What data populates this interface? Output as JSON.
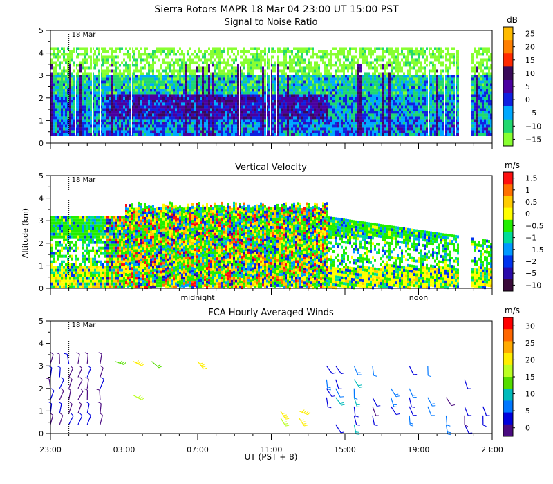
{
  "header": {
    "title": "Sierra Rotors   MAPR 18 Mar 04   23:00 UT   15:00   PST"
  },
  "x_axis": {
    "label": "UT  (PST + 8)",
    "range_hours": [
      0,
      24
    ],
    "tick_hours": [
      0,
      4,
      8,
      12,
      16,
      20,
      24
    ],
    "tick_labels": [
      "23:00",
      "03:00",
      "07:00",
      "11:00",
      "15:00",
      "19:00",
      "23:00"
    ],
    "minor_step_hours": 1,
    "day_marker_hour": 1,
    "day_marker_label": "18 Mar",
    "local_time_labels": [
      {
        "hour": 8,
        "text": "midnight"
      },
      {
        "hour": 20,
        "text": "noon"
      }
    ]
  },
  "y_axis": {
    "label": "Altitude (km)",
    "range": [
      0,
      5
    ],
    "ticks": [
      0,
      1,
      2,
      3,
      4,
      5
    ]
  },
  "chart_data": [
    {
      "type": "heatmap",
      "title": "Signal to Noise Ratio",
      "colorbar_unit": "dB",
      "colorbar_labels": [
        "25",
        "20",
        "15",
        "10",
        "5",
        "0",
        "−5",
        "−10",
        "−15"
      ],
      "colorbar_colors": [
        "#ffbb00",
        "#ff7f00",
        "#ff2a00",
        "#3a0a5a",
        "#4a00a0",
        "#1020e0",
        "#00a8ff",
        "#20d870",
        "#88ff30"
      ],
      "x_range": [
        0,
        24
      ],
      "y_range": [
        0,
        5
      ],
      "data_gaps_hours": [
        [
          22.15,
          22.8
        ],
        [
          23.95,
          24
        ]
      ],
      "profile_km": [
        {
          "alt_range": [
            0.4,
            1.1
          ],
          "dB": -2
        },
        {
          "alt_range": [
            1.1,
            2.2
          ],
          "dB": 8
        },
        {
          "alt_range": [
            2.2,
            3.1
          ],
          "dB": -5
        },
        {
          "alt_range": [
            3.1,
            4.25
          ],
          "dB": -15
        }
      ]
    },
    {
      "type": "heatmap",
      "title": "Vertical Velocity",
      "colorbar_unit": "m/s",
      "colorbar_labels": [
        "1.5",
        "1",
        "0.5",
        "0",
        "−0.5",
        "−1",
        "−1.5",
        "−2",
        "−5",
        "−10"
      ],
      "colorbar_colors": [
        "#ff1010",
        "#ff7000",
        "#ffcc00",
        "#ffff00",
        "#22ee00",
        "#00dd99",
        "#0099ff",
        "#0033ee",
        "#2a0aaa",
        "#3a0a3a"
      ],
      "x_range": [
        0,
        24
      ],
      "y_range": [
        0,
        5
      ],
      "data_gaps_hours": [
        [
          22.15,
          22.8
        ],
        [
          23.95,
          24
        ]
      ],
      "velocity_profile_ms": [
        {
          "alt_range": [
            0.1,
            1.0
          ],
          "mean": 0.2
        },
        {
          "alt_range": [
            1.0,
            2.5
          ],
          "mean": -0.3
        },
        {
          "alt_range": [
            2.5,
            3.6
          ],
          "mean": -0.6
        }
      ]
    },
    {
      "type": "scatter",
      "title": "FCA Hourly Averaged Winds",
      "colorbar_unit": "m/s",
      "colorbar_labels": [
        "30",
        "25",
        "20",
        "15",
        "10",
        "5",
        "0"
      ],
      "colorbar_colors": [
        "#ff0000",
        "#ff6600",
        "#ffaa00",
        "#ffee00",
        "#bbff22",
        "#55dd00",
        "#00bbbb",
        "#0077ff",
        "#0000dd",
        "#4a0a80"
      ],
      "x_range": [
        0,
        24
      ],
      "y_range": [
        0,
        5
      ],
      "glyph": "wind barb",
      "observation_hours": [
        0,
        0.5,
        1,
        1.5,
        2,
        2.7,
        3.5,
        4.5,
        5.5,
        8,
        12.5,
        13.5,
        15,
        15.5,
        16.5,
        17.5,
        18.5,
        19.5,
        20.5,
        21.5,
        22.5,
        23.5
      ]
    }
  ]
}
